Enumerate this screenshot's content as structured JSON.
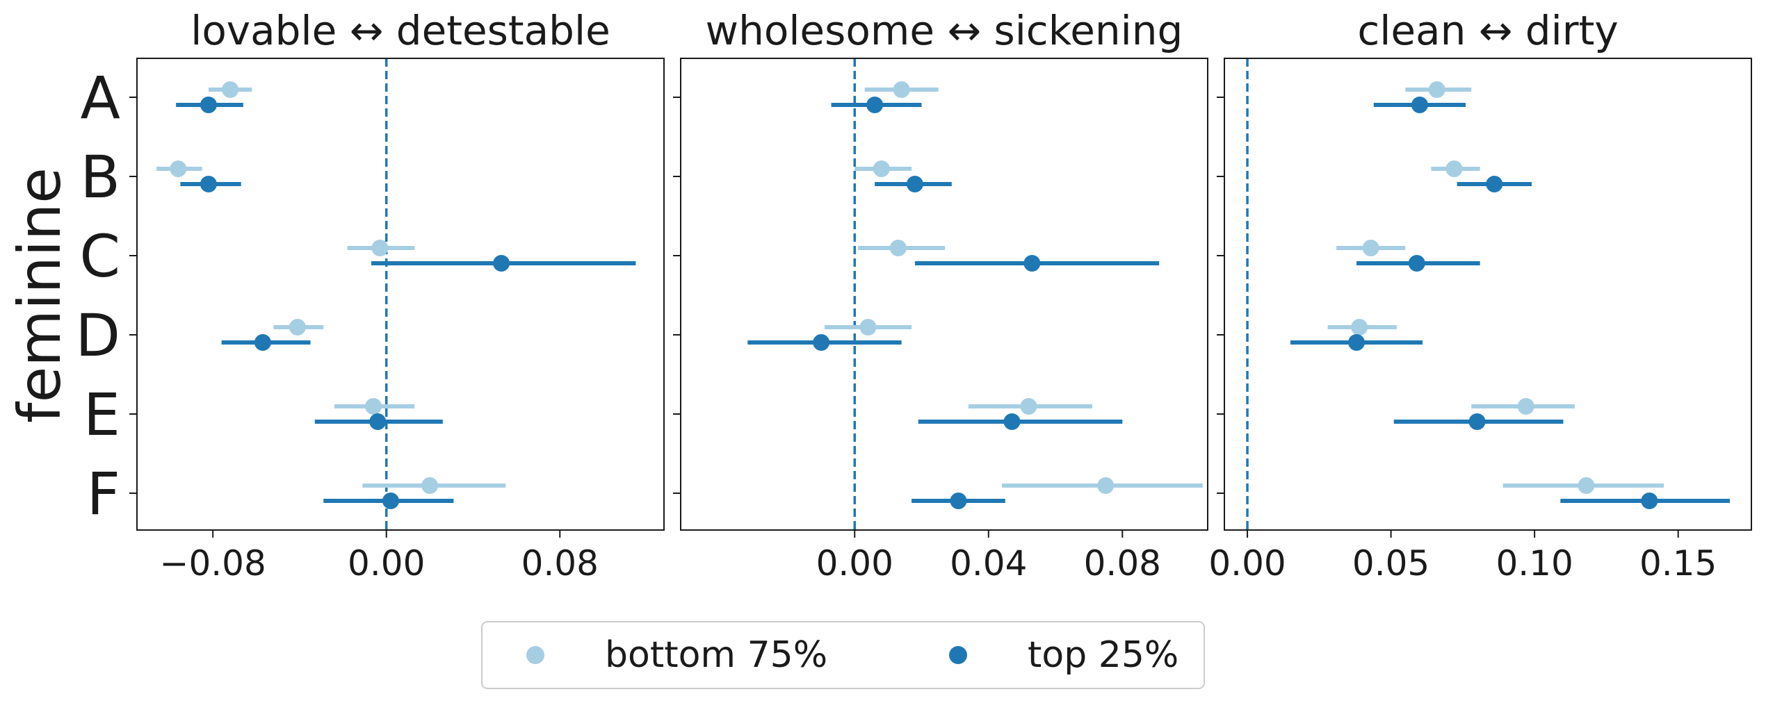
{
  "chart_data": {
    "type": "forest",
    "ylabel": "feminine",
    "categories": [
      "A",
      "B",
      "C",
      "D",
      "E",
      "F"
    ],
    "legend": {
      "placement": "bottom-center",
      "entries": [
        {
          "label": "bottom 75%",
          "color": "#a6cee3"
        },
        {
          "label": "top 25%",
          "color": "#1f78b4"
        }
      ]
    },
    "reference_line": {
      "x": 0.0,
      "style": "dashed",
      "color": "#1f78b4"
    },
    "panels": [
      {
        "title": "lovable ↔ detestable",
        "xlim": [
          -0.115,
          0.128
        ],
        "xticks": [
          -0.08,
          0.0,
          0.08
        ],
        "xtick_labels": [
          "−0.08",
          "0.00",
          "0.08"
        ],
        "series": [
          {
            "name": "bottom 75%",
            "points": [
              {
                "y": "A",
                "x": -0.072,
                "lo": -0.082,
                "hi": -0.062
              },
              {
                "y": "B",
                "x": -0.096,
                "lo": -0.106,
                "hi": -0.085
              },
              {
                "y": "C",
                "x": -0.003,
                "lo": -0.018,
                "hi": 0.013
              },
              {
                "y": "D",
                "x": -0.041,
                "lo": -0.052,
                "hi": -0.029
              },
              {
                "y": "E",
                "x": -0.006,
                "lo": -0.024,
                "hi": 0.013
              },
              {
                "y": "F",
                "x": 0.02,
                "lo": -0.011,
                "hi": 0.055
              }
            ]
          },
          {
            "name": "top 25%",
            "points": [
              {
                "y": "A",
                "x": -0.082,
                "lo": -0.097,
                "hi": -0.066
              },
              {
                "y": "B",
                "x": -0.082,
                "lo": -0.095,
                "hi": -0.067
              },
              {
                "y": "C",
                "x": 0.053,
                "lo": -0.007,
                "hi": 0.115
              },
              {
                "y": "D",
                "x": -0.057,
                "lo": -0.076,
                "hi": -0.035
              },
              {
                "y": "E",
                "x": -0.004,
                "lo": -0.033,
                "hi": 0.026
              },
              {
                "y": "F",
                "x": 0.002,
                "lo": -0.029,
                "hi": 0.031
              }
            ]
          }
        ]
      },
      {
        "title": "wholesome ↔ sickening",
        "xlim": [
          -0.052,
          0.1055
        ],
        "xticks": [
          0.0,
          0.04,
          0.08
        ],
        "xtick_labels": [
          "0.00",
          "0.04",
          "0.08"
        ],
        "series": [
          {
            "name": "bottom 75%",
            "points": [
              {
                "y": "A",
                "x": 0.014,
                "lo": 0.003,
                "hi": 0.025
              },
              {
                "y": "B",
                "x": 0.008,
                "lo": 0.0,
                "hi": 0.017
              },
              {
                "y": "C",
                "x": 0.013,
                "lo": 0.001,
                "hi": 0.027
              },
              {
                "y": "D",
                "x": 0.004,
                "lo": -0.009,
                "hi": 0.017
              },
              {
                "y": "E",
                "x": 0.052,
                "lo": 0.034,
                "hi": 0.071
              },
              {
                "y": "F",
                "x": 0.075,
                "lo": 0.044,
                "hi": 0.104
              }
            ]
          },
          {
            "name": "top 25%",
            "points": [
              {
                "y": "A",
                "x": 0.006,
                "lo": -0.007,
                "hi": 0.02
              },
              {
                "y": "B",
                "x": 0.018,
                "lo": 0.006,
                "hi": 0.029
              },
              {
                "y": "C",
                "x": 0.053,
                "lo": 0.018,
                "hi": 0.091
              },
              {
                "y": "D",
                "x": -0.01,
                "lo": -0.032,
                "hi": 0.014
              },
              {
                "y": "E",
                "x": 0.047,
                "lo": 0.019,
                "hi": 0.08
              },
              {
                "y": "F",
                "x": 0.031,
                "lo": 0.017,
                "hi": 0.045
              }
            ]
          }
        ]
      },
      {
        "title": "clean ↔ dirty",
        "xlim": [
          -0.008,
          0.1755
        ],
        "xticks": [
          0.0,
          0.05,
          0.1,
          0.15
        ],
        "xtick_labels": [
          "0.00",
          "0.05",
          "0.10",
          "0.15"
        ],
        "series": [
          {
            "name": "bottom 75%",
            "points": [
              {
                "y": "A",
                "x": 0.066,
                "lo": 0.055,
                "hi": 0.078
              },
              {
                "y": "B",
                "x": 0.072,
                "lo": 0.064,
                "hi": 0.081
              },
              {
                "y": "C",
                "x": 0.043,
                "lo": 0.031,
                "hi": 0.055
              },
              {
                "y": "D",
                "x": 0.039,
                "lo": 0.028,
                "hi": 0.052
              },
              {
                "y": "E",
                "x": 0.097,
                "lo": 0.078,
                "hi": 0.114
              },
              {
                "y": "F",
                "x": 0.118,
                "lo": 0.089,
                "hi": 0.145
              }
            ]
          },
          {
            "name": "top 25%",
            "points": [
              {
                "y": "A",
                "x": 0.06,
                "lo": 0.044,
                "hi": 0.076
              },
              {
                "y": "B",
                "x": 0.086,
                "lo": 0.073,
                "hi": 0.099
              },
              {
                "y": "C",
                "x": 0.059,
                "lo": 0.038,
                "hi": 0.081
              },
              {
                "y": "D",
                "x": 0.038,
                "lo": 0.015,
                "hi": 0.061
              },
              {
                "y": "E",
                "x": 0.08,
                "lo": 0.051,
                "hi": 0.11
              },
              {
                "y": "F",
                "x": 0.14,
                "lo": 0.109,
                "hi": 0.168
              }
            ]
          }
        ]
      }
    ]
  }
}
